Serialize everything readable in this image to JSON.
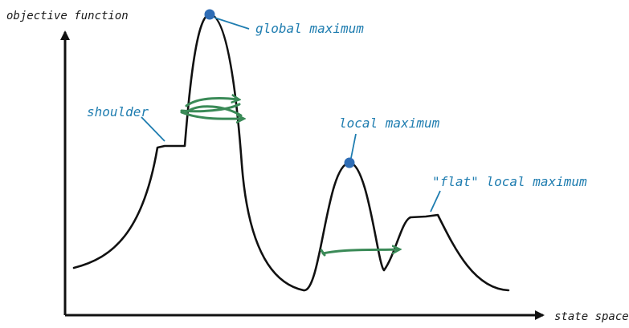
{
  "diagram": {
    "labels": {
      "y_axis": "objective function",
      "x_axis": "state space",
      "global_max": "global maximum",
      "local_max": "local maximum",
      "flat_local_max": "\"flat\" local maximum",
      "shoulder": "shoulder"
    },
    "colors": {
      "curve": "#111111",
      "axis": "#111111",
      "annotation": "#1f7db0",
      "marker": "#2f6db5",
      "arrow_green": "#3a8a57"
    }
  }
}
